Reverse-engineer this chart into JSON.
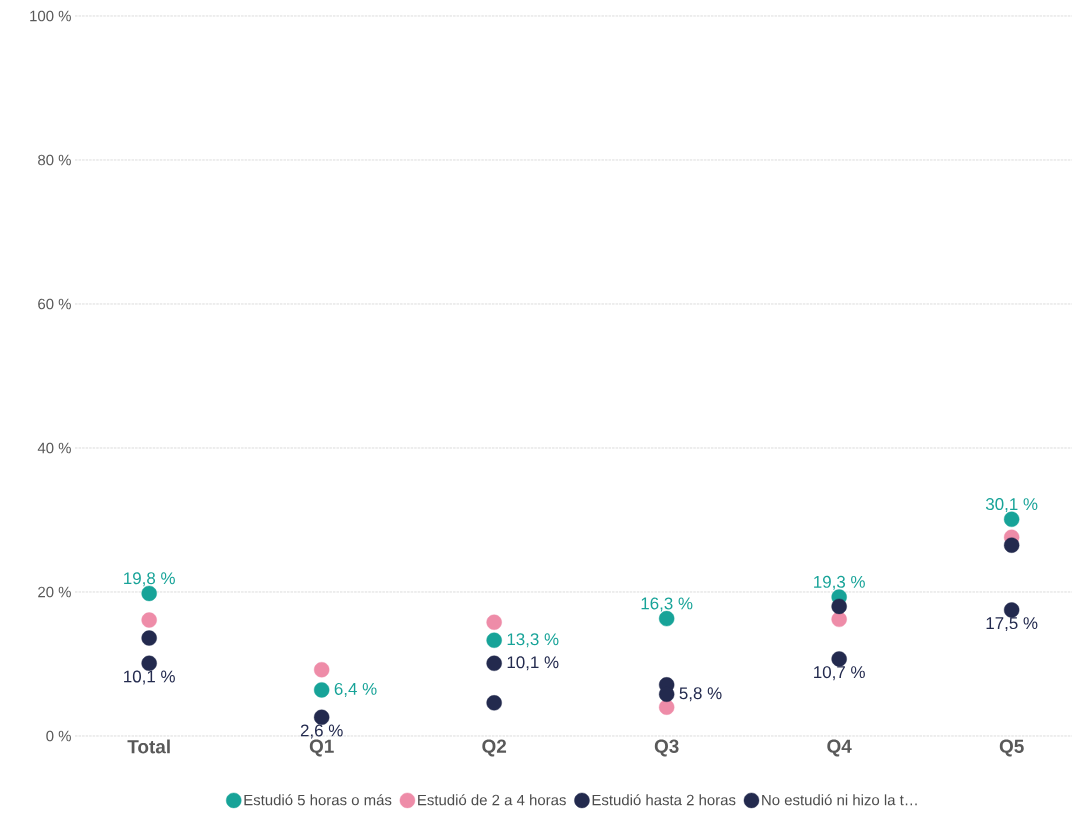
{
  "chart_data": {
    "type": "scatter",
    "categories": [
      "Total",
      "Q1",
      "Q2",
      "Q3",
      "Q4",
      "Q5"
    ],
    "ylim": [
      0,
      100
    ],
    "yticks": [
      {
        "value": 0,
        "label": "0 %"
      },
      {
        "value": 20,
        "label": "20 %"
      },
      {
        "value": 40,
        "label": "40 %"
      },
      {
        "value": 60,
        "label": "60 %"
      },
      {
        "value": 80,
        "label": "80 %"
      },
      {
        "value": 100,
        "label": "100 %"
      }
    ],
    "grid": "y",
    "legend": "bottom",
    "marker": "circle",
    "series": [
      {
        "name": "Estudió 5 horas o más",
        "color": "#17a398",
        "values": [
          19.8,
          6.4,
          13.3,
          16.3,
          19.3,
          30.1
        ],
        "value_labels": [
          "19,8 %",
          "6,4 %",
          "13,3 %",
          "16,3 %",
          "19,3 %",
          "30,1 %"
        ]
      },
      {
        "name": "Estudió de 2 a 4 horas",
        "color": "#ee8ca8",
        "values": [
          16.1,
          9.2,
          15.8,
          4.0,
          16.2,
          27.6
        ]
      },
      {
        "name": "Estudió hasta 2 horas",
        "color": "#232a4e",
        "values": [
          13.6,
          null,
          4.6,
          7.1,
          18.0,
          26.5
        ]
      },
      {
        "name": "No estudió ni hizo la t…",
        "color": "#232a4e",
        "values": [
          10.1,
          2.6,
          10.1,
          5.8,
          10.7,
          17.5
        ],
        "value_labels": [
          "10,1 %",
          "2,6 %",
          "10,1 %",
          "5,8 %",
          "10,7 %",
          "17,5 %"
        ]
      }
    ]
  }
}
